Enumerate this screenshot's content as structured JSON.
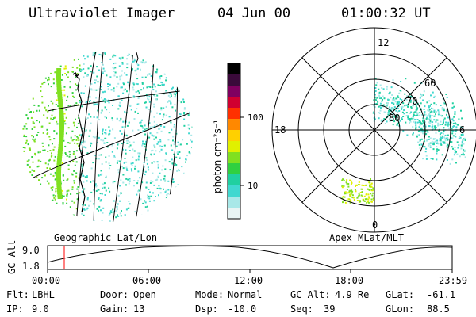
{
  "header": {
    "instrument": "Ultraviolet Imager",
    "date": "04 Jun 00",
    "time": "01:00:32 UT"
  },
  "geo_panel": {
    "label": "Geographic Lat/Lon"
  },
  "polar_panel": {
    "label": "Apex MLat/MLT",
    "mlt_labels": [
      "12",
      "18",
      "6",
      "0"
    ],
    "mlat_labels": [
      "60",
      "70",
      "80"
    ]
  },
  "colorbar": {
    "unit": "photon cm⁻²s⁻¹",
    "ticks": [
      "100",
      "10"
    ],
    "colors": [
      "#000000",
      "#3a0a3a",
      "#800060",
      "#d00030",
      "#ff3000",
      "#ff8800",
      "#ffd000",
      "#e0f000",
      "#80e020",
      "#30d040",
      "#20d0a0",
      "#40d8d0",
      "#a8e8e8",
      "#e8f4f4"
    ]
  },
  "altitude_plot": {
    "ylabel": "GC Alt",
    "yticks": [
      "9.0",
      "1.8"
    ],
    "xticks": [
      "00:00",
      "06:00",
      "12:00",
      "18:00",
      "23:59"
    ],
    "marker_time": "01:00"
  },
  "info": {
    "row1": [
      {
        "label": "Flt:",
        "value": "LBHL"
      },
      {
        "label": "Door:",
        "value": "Open"
      },
      {
        "label": "Mode:",
        "value": "Normal"
      },
      {
        "label": "GC Alt:",
        "value": "4.9 Re"
      },
      {
        "label": "GLat:",
        "value": "-61.1"
      }
    ],
    "row2": [
      {
        "label": "IP:",
        "value": "9.0"
      },
      {
        "label": "Gain:",
        "value": "13"
      },
      {
        "label": "Dsp:",
        "value": "-10.0"
      },
      {
        "label": "Seq:",
        "value": "39"
      },
      {
        "label": "GLon:",
        "value": "88.5"
      }
    ]
  }
}
